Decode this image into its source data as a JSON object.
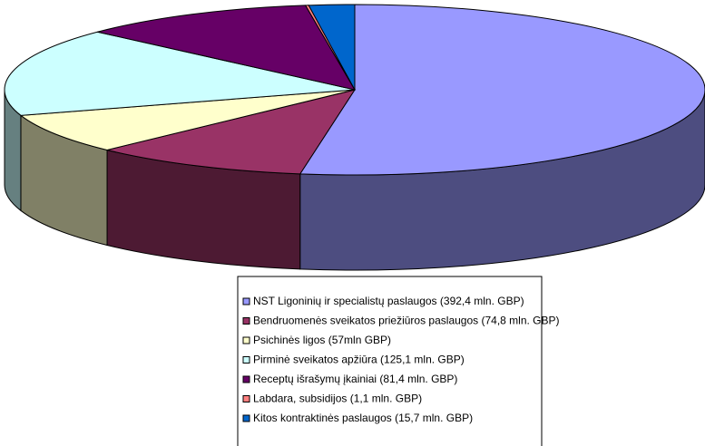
{
  "chart_data": {
    "type": "pie",
    "labels": [
      "NST Ligoninių ir specialistų paslaugos (392,4 mln. GBP)",
      "Bendruomenės sveikatos priežiūros paslaugos (74,8 mln. GBP)",
      "Psichinės ligos (57mln GBP)",
      "Pirminė sveikatos apžiūra (125,1 mln. GBP)",
      "Receptų išrašymų įkainiai (81,4 mln. GBP)",
      "Labdara, subsidijos (1,1 mln. GBP)",
      "Kitos kontraktinės paslaugos (15,7 mln. GBP)"
    ],
    "values": [
      392.4,
      74.8,
      57,
      125.1,
      81.4,
      1.1,
      15.7
    ],
    "colors": [
      "#9999ff",
      "#993366",
      "#ffffcc",
      "#ccffff",
      "#660066",
      "#ff8080",
      "#0066cc"
    ],
    "legend": "bottom"
  }
}
